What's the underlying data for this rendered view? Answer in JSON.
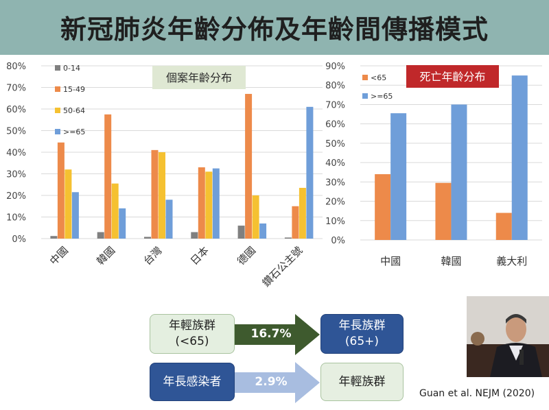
{
  "title": "新冠肺炎年齡分佈及年齡間傳播模式",
  "chart_data": [
    {
      "type": "bar",
      "title": "個案年齡分布",
      "categories": [
        "中國",
        "韓國",
        "台灣",
        "日本",
        "德國",
        "鑽石公主號"
      ],
      "ylim": [
        0,
        80
      ],
      "ytick_labels": [
        "0%",
        "10%",
        "20%",
        "30%",
        "40%",
        "50%",
        "60%",
        "70%",
        "80%"
      ],
      "grid": true,
      "legend": "top-left",
      "series": [
        {
          "name": "0-14",
          "color": "#808080",
          "values": [
            1.2,
            3.0,
            0.8,
            3.0,
            6.0,
            0.5
          ]
        },
        {
          "name": "15-49",
          "color": "#ed8a4a",
          "values": [
            44.5,
            57.5,
            41.0,
            33.0,
            67.0,
            15.0
          ]
        },
        {
          "name": "50-64",
          "color": "#f5c131",
          "values": [
            32.0,
            25.5,
            40.0,
            31.0,
            20.0,
            23.5
          ]
        },
        {
          "name": ">=65",
          "color": "#6f9ed9",
          "values": [
            21.5,
            14.0,
            18.0,
            32.5,
            7.0,
            61.0
          ]
        }
      ]
    },
    {
      "type": "bar",
      "title": "死亡年齡分布",
      "categories": [
        "中國",
        "韓國",
        "義大利"
      ],
      "ylim": [
        0,
        90
      ],
      "ytick_labels": [
        "0%",
        "10%",
        "20%",
        "30%",
        "40%",
        "50%",
        "60%",
        "70%",
        "80%",
        "90%"
      ],
      "grid": true,
      "legend": "top-left",
      "series": [
        {
          "name": "<65",
          "color": "#ed8a4a",
          "values": [
            34.0,
            29.5,
            14.0
          ]
        },
        {
          "name": ">=65",
          "color": "#6f9ed9",
          "values": [
            65.5,
            70.0,
            85.0
          ]
        }
      ]
    }
  ],
  "flow": {
    "young_group": "年輕族群\n(<65)",
    "arrow1_value": "16.7%",
    "old_group": "年長族群\n(65+)",
    "old_infected": "年長感染者",
    "arrow2_value": "2.9%",
    "young_group2": "年輕族群"
  },
  "citation": "Guan et al. NEJM (2020)"
}
